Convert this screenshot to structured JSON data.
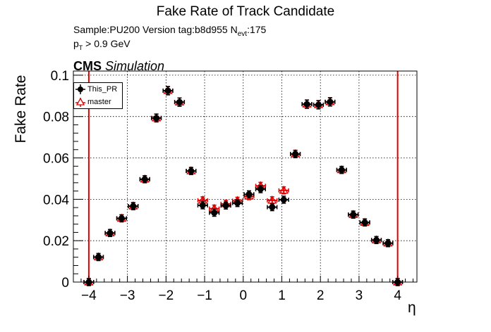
{
  "header": {
    "title": "Fake Rate of Track Candidate",
    "sample_prefix": "Sample:PU200   Version tag:b8d955  N",
    "sample_sub": "evt",
    "sample_suffix": ":175",
    "pt_prefix": "p",
    "pt_sub": "T",
    "pt_suffix": " > 0.9 GeV",
    "cms": "CMS",
    "simulation": "Simulation"
  },
  "legend": {
    "items": [
      {
        "label": "This_PR",
        "color": "#000000",
        "marker": "filled-circle"
      },
      {
        "label": "master",
        "color": "#e00000",
        "marker": "open-triangle"
      }
    ]
  },
  "chart_data": {
    "type": "scatter",
    "title": "Fake Rate of Track Candidate",
    "xlabel": "η",
    "ylabel": "Fake Rate",
    "xlim": [
      -4.4,
      4.5
    ],
    "ylim": [
      0,
      0.102
    ],
    "x_ticks": [
      -4,
      -3,
      -2,
      -1,
      0,
      1,
      2,
      3,
      4
    ],
    "x_tick_labels": [
      "−4",
      "−3",
      "−2",
      "−1",
      "0",
      "1",
      "2",
      "3",
      "4"
    ],
    "y_ticks": [
      0,
      0.02,
      0.04,
      0.06,
      0.08,
      0.1
    ],
    "y_tick_labels": [
      "0",
      "0.02",
      "0.04",
      "0.06",
      "0.08",
      "0.1"
    ],
    "grid": true,
    "legend_position": "top-left",
    "x_error": 0.125,
    "vertical_lines": [
      -4.0,
      4.0
    ],
    "vertical_line_color": "#e00000",
    "x": [
      -4.0,
      -3.75,
      -3.45,
      -3.15,
      -2.85,
      -2.55,
      -2.25,
      -1.95,
      -1.65,
      -1.35,
      -1.05,
      -0.75,
      -0.45,
      -0.15,
      0.15,
      0.45,
      0.75,
      1.05,
      1.35,
      1.65,
      1.95,
      2.25,
      2.55,
      2.85,
      3.15,
      3.45,
      3.75,
      4.0
    ],
    "series": [
      {
        "name": "This_PR",
        "color": "#000000",
        "values": [
          0.0,
          0.0121,
          0.0237,
          0.0308,
          0.0367,
          0.0497,
          0.0793,
          0.0925,
          0.087,
          0.0537,
          0.0371,
          0.0335,
          0.037,
          0.0382,
          0.0424,
          0.0449,
          0.0362,
          0.0398,
          0.0619,
          0.086,
          0.0857,
          0.0871,
          0.0542,
          0.0326,
          0.0288,
          0.0203,
          0.0188,
          0.0
        ],
        "errors": [
          0.0,
          0.0013,
          0.0013,
          0.0014,
          0.0016,
          0.0016,
          0.0019,
          0.002,
          0.002,
          0.0017,
          0.0016,
          0.0016,
          0.0016,
          0.0016,
          0.0017,
          0.0017,
          0.0016,
          0.0016,
          0.0018,
          0.002,
          0.002,
          0.002,
          0.0017,
          0.0015,
          0.0014,
          0.0013,
          0.0013,
          0.0
        ]
      },
      {
        "name": "master",
        "color": "#e00000",
        "values": [
          0.0,
          0.0121,
          0.0237,
          0.0308,
          0.0367,
          0.0497,
          0.0793,
          0.0925,
          0.087,
          0.0537,
          0.0395,
          0.0355,
          0.0378,
          0.0393,
          0.0415,
          0.0465,
          0.0395,
          0.0443,
          0.0619,
          0.086,
          0.0857,
          0.0871,
          0.0542,
          0.0326,
          0.0288,
          0.0203,
          0.0188,
          0.0
        ],
        "errors": [
          0.0,
          0.0013,
          0.0013,
          0.0014,
          0.0016,
          0.0016,
          0.0019,
          0.002,
          0.002,
          0.0017,
          0.0016,
          0.0016,
          0.0016,
          0.0016,
          0.0017,
          0.0017,
          0.0016,
          0.0016,
          0.0018,
          0.002,
          0.002,
          0.002,
          0.0017,
          0.0015,
          0.0014,
          0.0013,
          0.0013,
          0.0
        ]
      }
    ]
  }
}
